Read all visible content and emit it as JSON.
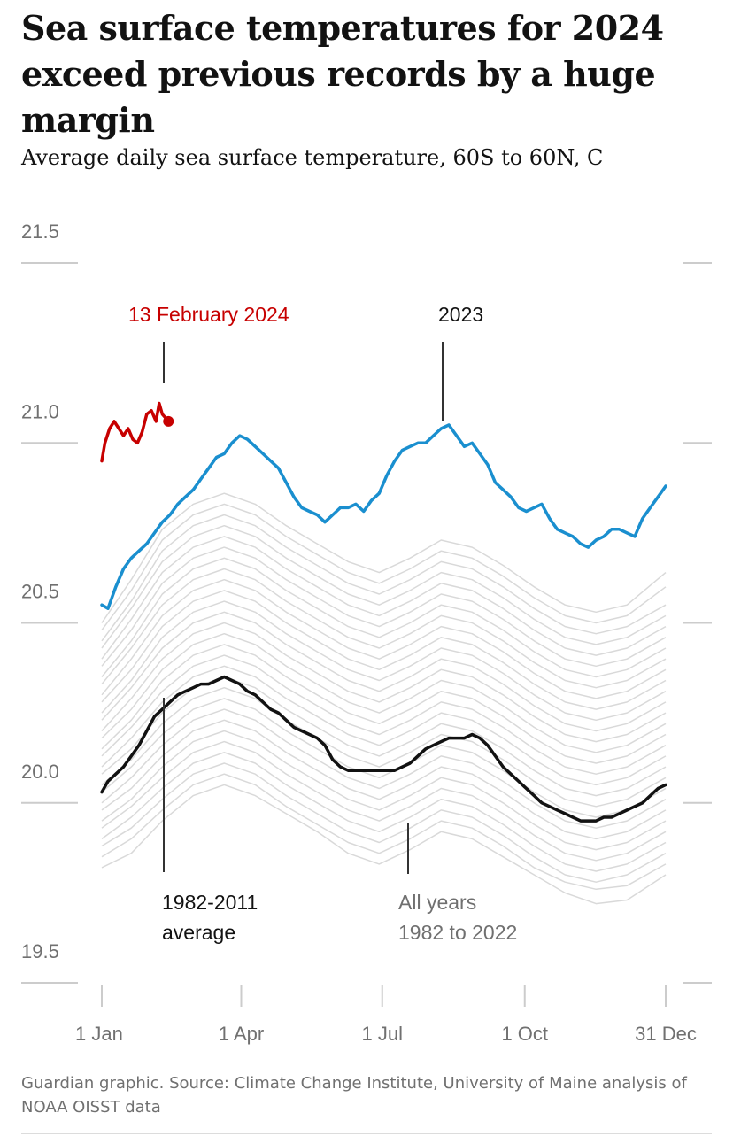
{
  "title": "Sea surface temperatures for 2024 exceed previous records by a huge margin",
  "subtitle": "Average daily sea surface temperature, 60S to 60N, C",
  "source": "Guardian graphic. Source: Climate Change Institute, University of Maine analysis of NOAA OISST data",
  "colors": {
    "y2024": "#c70000",
    "y2023": "#1a8fcf",
    "average": "#121212",
    "other_years": "#d9d9d9",
    "grid": "#cccccc",
    "axis_text": "#707070"
  },
  "annotations": {
    "y2024": "13 February 2024",
    "y2023": "2023",
    "average_line1": "1982-2011",
    "average_line2": "average",
    "all_years_line1": "All years",
    "all_years_line2": "1982 to 2022"
  },
  "chart_data": {
    "type": "line",
    "title": "Sea surface temperatures for 2024 exceed previous records by a huge margin",
    "subtitle": "Average daily sea surface temperature, 60S to 60N, C",
    "xlabel": "",
    "ylabel": "",
    "x_unit": "day of year",
    "xlim": [
      1,
      366
    ],
    "ylim": [
      19.5,
      21.5
    ],
    "grid": true,
    "y_ticks": [
      19.5,
      20.0,
      20.5,
      21.0,
      21.5
    ],
    "y_tick_labels": [
      "19.5",
      "20.0",
      "20.5",
      "21.0",
      "21.5"
    ],
    "x_ticks": [
      1,
      91,
      182,
      274,
      365
    ],
    "x_tick_labels": [
      "1 Jan",
      "1 Apr",
      "1 Jul",
      "1 Oct",
      "31 Dec"
    ],
    "series": [
      {
        "name": "2024",
        "role": "y2024",
        "x": [
          1,
          3,
          6,
          9,
          12,
          15,
          18,
          21,
          24,
          27,
          30,
          33,
          36,
          38,
          40,
          42,
          44
        ],
        "y": [
          20.95,
          21.0,
          21.04,
          21.06,
          21.04,
          21.02,
          21.04,
          21.01,
          21.0,
          21.03,
          21.08,
          21.09,
          21.06,
          21.11,
          21.08,
          21.07,
          21.06
        ]
      },
      {
        "name": "2023",
        "role": "y2023",
        "x": [
          1,
          5,
          10,
          15,
          20,
          25,
          30,
          35,
          40,
          45,
          50,
          55,
          60,
          65,
          70,
          75,
          80,
          85,
          90,
          95,
          100,
          105,
          110,
          115,
          120,
          125,
          130,
          135,
          140,
          145,
          150,
          155,
          160,
          165,
          170,
          175,
          180,
          185,
          190,
          195,
          200,
          205,
          210,
          215,
          220,
          225,
          230,
          235,
          240,
          245,
          250,
          255,
          260,
          265,
          270,
          275,
          280,
          285,
          290,
          295,
          300,
          305,
          310,
          315,
          320,
          325,
          330,
          335,
          340,
          345,
          350,
          355,
          360,
          365
        ],
        "y": [
          20.55,
          20.54,
          20.6,
          20.65,
          20.68,
          20.7,
          20.72,
          20.75,
          20.78,
          20.8,
          20.83,
          20.85,
          20.87,
          20.9,
          20.93,
          20.96,
          20.97,
          21.0,
          21.02,
          21.01,
          20.99,
          20.97,
          20.95,
          20.93,
          20.89,
          20.85,
          20.82,
          20.81,
          20.8,
          20.78,
          20.8,
          20.82,
          20.82,
          20.83,
          20.81,
          20.84,
          20.86,
          20.91,
          20.95,
          20.98,
          20.99,
          21.0,
          21.0,
          21.02,
          21.04,
          21.05,
          21.02,
          20.99,
          21.0,
          20.97,
          20.94,
          20.89,
          20.87,
          20.85,
          20.82,
          20.81,
          20.82,
          20.83,
          20.79,
          20.76,
          20.75,
          20.74,
          20.72,
          20.71,
          20.73,
          20.74,
          20.76,
          20.76,
          20.75,
          20.74,
          20.79,
          20.82,
          20.85,
          20.88
        ]
      },
      {
        "name": "1982-2011 average",
        "role": "average",
        "x": [
          1,
          5,
          10,
          15,
          20,
          25,
          30,
          35,
          40,
          45,
          50,
          55,
          60,
          65,
          70,
          75,
          80,
          85,
          90,
          95,
          100,
          105,
          110,
          115,
          120,
          125,
          130,
          135,
          140,
          145,
          150,
          155,
          160,
          165,
          170,
          175,
          180,
          185,
          190,
          195,
          200,
          205,
          210,
          215,
          220,
          225,
          230,
          235,
          240,
          245,
          250,
          255,
          260,
          265,
          270,
          275,
          280,
          285,
          290,
          295,
          300,
          305,
          310,
          315,
          320,
          325,
          330,
          335,
          340,
          345,
          350,
          355,
          360,
          365
        ],
        "y": [
          20.03,
          20.06,
          20.08,
          20.1,
          20.13,
          20.16,
          20.2,
          20.24,
          20.26,
          20.28,
          20.3,
          20.31,
          20.32,
          20.33,
          20.33,
          20.34,
          20.35,
          20.34,
          20.33,
          20.31,
          20.3,
          20.28,
          20.26,
          20.25,
          20.23,
          20.21,
          20.2,
          20.19,
          20.18,
          20.16,
          20.12,
          20.1,
          20.09,
          20.09,
          20.09,
          20.09,
          20.09,
          20.09,
          20.09,
          20.1,
          20.11,
          20.13,
          20.15,
          20.16,
          20.17,
          20.18,
          20.18,
          20.18,
          20.19,
          20.18,
          20.16,
          20.13,
          20.1,
          20.08,
          20.06,
          20.04,
          20.02,
          20.0,
          19.99,
          19.98,
          19.97,
          19.96,
          19.95,
          19.95,
          19.95,
          19.96,
          19.96,
          19.97,
          19.98,
          19.99,
          20.0,
          20.02,
          20.04,
          20.05
        ]
      }
    ],
    "background_series": {
      "label": "All years 1982 to 2022",
      "x": [
        1,
        20,
        40,
        60,
        80,
        100,
        120,
        140,
        160,
        180,
        200,
        220,
        240,
        260,
        280,
        300,
        320,
        340,
        365
      ],
      "lines": [
        [
          19.82,
          19.86,
          19.95,
          20.02,
          20.05,
          20.02,
          19.97,
          19.92,
          19.86,
          19.83,
          19.87,
          19.92,
          19.9,
          19.85,
          19.8,
          19.75,
          19.72,
          19.73,
          19.8
        ],
        [
          19.85,
          19.9,
          19.98,
          20.05,
          20.08,
          20.05,
          19.99,
          19.94,
          19.89,
          19.86,
          19.9,
          19.95,
          19.93,
          19.88,
          19.82,
          19.78,
          19.76,
          19.77,
          19.83
        ],
        [
          19.88,
          19.93,
          20.01,
          20.08,
          20.11,
          20.08,
          20.02,
          19.97,
          19.92,
          19.89,
          19.93,
          19.98,
          19.96,
          19.91,
          19.85,
          19.8,
          19.78,
          19.8,
          19.86
        ],
        [
          19.9,
          19.96,
          20.04,
          20.11,
          20.14,
          20.11,
          20.05,
          20.0,
          19.95,
          19.92,
          19.96,
          20.01,
          19.99,
          19.94,
          19.88,
          19.83,
          19.81,
          19.83,
          19.89
        ],
        [
          19.93,
          19.99,
          20.07,
          20.14,
          20.17,
          20.14,
          20.08,
          20.03,
          19.98,
          19.95,
          19.99,
          20.04,
          20.02,
          19.97,
          19.91,
          19.86,
          19.84,
          19.86,
          19.92
        ],
        [
          19.95,
          20.01,
          20.1,
          20.17,
          20.2,
          20.17,
          20.11,
          20.06,
          20.01,
          19.98,
          20.02,
          20.07,
          20.05,
          20.0,
          19.94,
          19.89,
          19.87,
          19.89,
          19.95
        ],
        [
          19.98,
          20.04,
          20.13,
          20.2,
          20.23,
          20.2,
          20.14,
          20.09,
          20.04,
          20.01,
          20.05,
          20.1,
          20.08,
          20.03,
          19.97,
          19.92,
          19.9,
          19.92,
          19.98
        ],
        [
          20.0,
          20.07,
          20.16,
          20.23,
          20.26,
          20.23,
          20.17,
          20.12,
          20.07,
          20.04,
          20.08,
          20.13,
          20.11,
          20.06,
          20.0,
          19.95,
          19.93,
          19.95,
          20.01
        ],
        [
          20.03,
          20.1,
          20.19,
          20.26,
          20.29,
          20.26,
          20.2,
          20.15,
          20.1,
          20.07,
          20.11,
          20.16,
          20.14,
          20.09,
          20.03,
          19.98,
          19.96,
          19.98,
          20.04
        ],
        [
          20.05,
          20.12,
          20.22,
          20.29,
          20.32,
          20.29,
          20.23,
          20.18,
          20.13,
          20.1,
          20.14,
          20.19,
          20.17,
          20.12,
          20.06,
          20.01,
          19.99,
          20.01,
          20.07
        ],
        [
          20.08,
          20.15,
          20.25,
          20.32,
          20.35,
          20.32,
          20.26,
          20.21,
          20.16,
          20.13,
          20.17,
          20.22,
          20.2,
          20.15,
          20.09,
          20.04,
          20.02,
          20.04,
          20.1
        ],
        [
          20.1,
          20.18,
          20.28,
          20.35,
          20.38,
          20.35,
          20.29,
          20.24,
          20.19,
          20.16,
          20.2,
          20.25,
          20.23,
          20.18,
          20.12,
          20.07,
          20.05,
          20.07,
          20.13
        ],
        [
          20.13,
          20.21,
          20.31,
          20.38,
          20.41,
          20.38,
          20.32,
          20.27,
          20.22,
          20.19,
          20.23,
          20.28,
          20.26,
          20.21,
          20.15,
          20.1,
          20.08,
          20.1,
          20.16
        ],
        [
          20.15,
          20.23,
          20.34,
          20.41,
          20.44,
          20.41,
          20.35,
          20.3,
          20.25,
          20.22,
          20.26,
          20.31,
          20.29,
          20.24,
          20.18,
          20.13,
          20.11,
          20.13,
          20.19
        ],
        [
          20.18,
          20.26,
          20.37,
          20.44,
          20.47,
          20.44,
          20.38,
          20.33,
          20.28,
          20.25,
          20.29,
          20.34,
          20.32,
          20.27,
          20.21,
          20.16,
          20.14,
          20.16,
          20.22
        ],
        [
          20.2,
          20.29,
          20.4,
          20.47,
          20.5,
          20.47,
          20.41,
          20.36,
          20.31,
          20.28,
          20.32,
          20.37,
          20.35,
          20.3,
          20.24,
          20.19,
          20.17,
          20.19,
          20.25
        ],
        [
          20.23,
          20.32,
          20.43,
          20.5,
          20.53,
          20.5,
          20.44,
          20.39,
          20.34,
          20.31,
          20.35,
          20.4,
          20.38,
          20.33,
          20.27,
          20.22,
          20.2,
          20.22,
          20.28
        ],
        [
          20.25,
          20.34,
          20.46,
          20.53,
          20.56,
          20.53,
          20.47,
          20.42,
          20.37,
          20.34,
          20.38,
          20.43,
          20.41,
          20.36,
          20.3,
          20.25,
          20.23,
          20.25,
          20.31
        ],
        [
          20.28,
          20.37,
          20.49,
          20.56,
          20.59,
          20.56,
          20.5,
          20.45,
          20.4,
          20.37,
          20.41,
          20.46,
          20.44,
          20.39,
          20.33,
          20.28,
          20.26,
          20.28,
          20.34
        ],
        [
          20.3,
          20.4,
          20.52,
          20.59,
          20.62,
          20.59,
          20.53,
          20.48,
          20.43,
          20.4,
          20.44,
          20.49,
          20.47,
          20.42,
          20.36,
          20.31,
          20.29,
          20.31,
          20.37
        ],
        [
          20.33,
          20.43,
          20.55,
          20.62,
          20.65,
          20.62,
          20.56,
          20.51,
          20.46,
          20.43,
          20.47,
          20.52,
          20.5,
          20.45,
          20.39,
          20.34,
          20.32,
          20.34,
          20.4
        ],
        [
          20.35,
          20.45,
          20.58,
          20.65,
          20.68,
          20.65,
          20.59,
          20.54,
          20.49,
          20.46,
          20.5,
          20.55,
          20.53,
          20.48,
          20.42,
          20.37,
          20.35,
          20.37,
          20.43
        ],
        [
          20.38,
          20.48,
          20.61,
          20.68,
          20.71,
          20.68,
          20.62,
          20.57,
          20.52,
          20.49,
          20.53,
          20.58,
          20.56,
          20.51,
          20.45,
          20.4,
          20.38,
          20.4,
          20.46
        ],
        [
          20.4,
          20.51,
          20.64,
          20.71,
          20.74,
          20.71,
          20.65,
          20.6,
          20.55,
          20.52,
          20.56,
          20.61,
          20.59,
          20.54,
          20.48,
          20.43,
          20.41,
          20.43,
          20.49
        ],
        [
          20.43,
          20.54,
          20.67,
          20.74,
          20.77,
          20.74,
          20.68,
          20.63,
          20.58,
          20.55,
          20.59,
          20.64,
          20.62,
          20.57,
          20.51,
          20.46,
          20.44,
          20.46,
          20.52
        ],
        [
          20.45,
          20.56,
          20.7,
          20.77,
          20.8,
          20.77,
          20.71,
          20.66,
          20.61,
          20.58,
          20.62,
          20.67,
          20.65,
          20.6,
          20.54,
          20.49,
          20.47,
          20.49,
          20.55
        ],
        [
          20.48,
          20.59,
          20.73,
          20.8,
          20.83,
          20.8,
          20.74,
          20.69,
          20.64,
          20.61,
          20.65,
          20.7,
          20.68,
          20.63,
          20.57,
          20.52,
          20.5,
          20.52,
          20.6
        ],
        [
          20.5,
          20.62,
          20.76,
          20.83,
          20.86,
          20.83,
          20.77,
          20.72,
          20.67,
          20.64,
          20.68,
          20.73,
          20.71,
          20.66,
          20.6,
          20.55,
          20.53,
          20.55,
          20.64
        ]
      ]
    }
  }
}
